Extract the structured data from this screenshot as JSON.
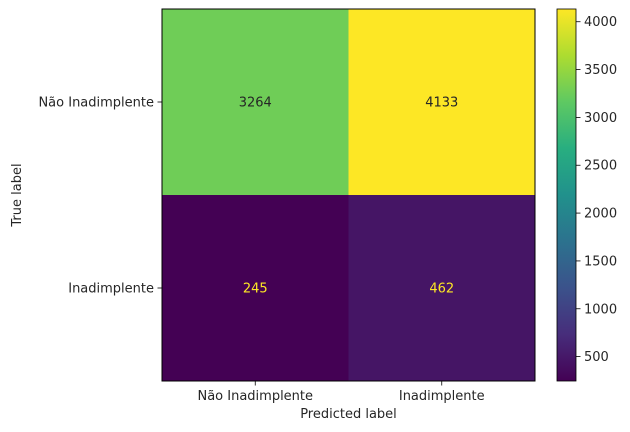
{
  "chart_data": {
    "type": "heatmap",
    "xlabel": "Predicted label",
    "ylabel": "True label",
    "x_categories": [
      "Não Inadimplente",
      "Inadimplente"
    ],
    "y_categories": [
      "Não Inadimplente",
      "Inadimplente"
    ],
    "values": [
      [
        3264,
        4133
      ],
      [
        245,
        462
      ]
    ],
    "colorscale": "viridis",
    "colorbar": {
      "vmin": 245,
      "vmax": 4133,
      "ticks": [
        500,
        1000,
        1500,
        2000,
        2500,
        3000,
        3500,
        4000
      ]
    }
  }
}
